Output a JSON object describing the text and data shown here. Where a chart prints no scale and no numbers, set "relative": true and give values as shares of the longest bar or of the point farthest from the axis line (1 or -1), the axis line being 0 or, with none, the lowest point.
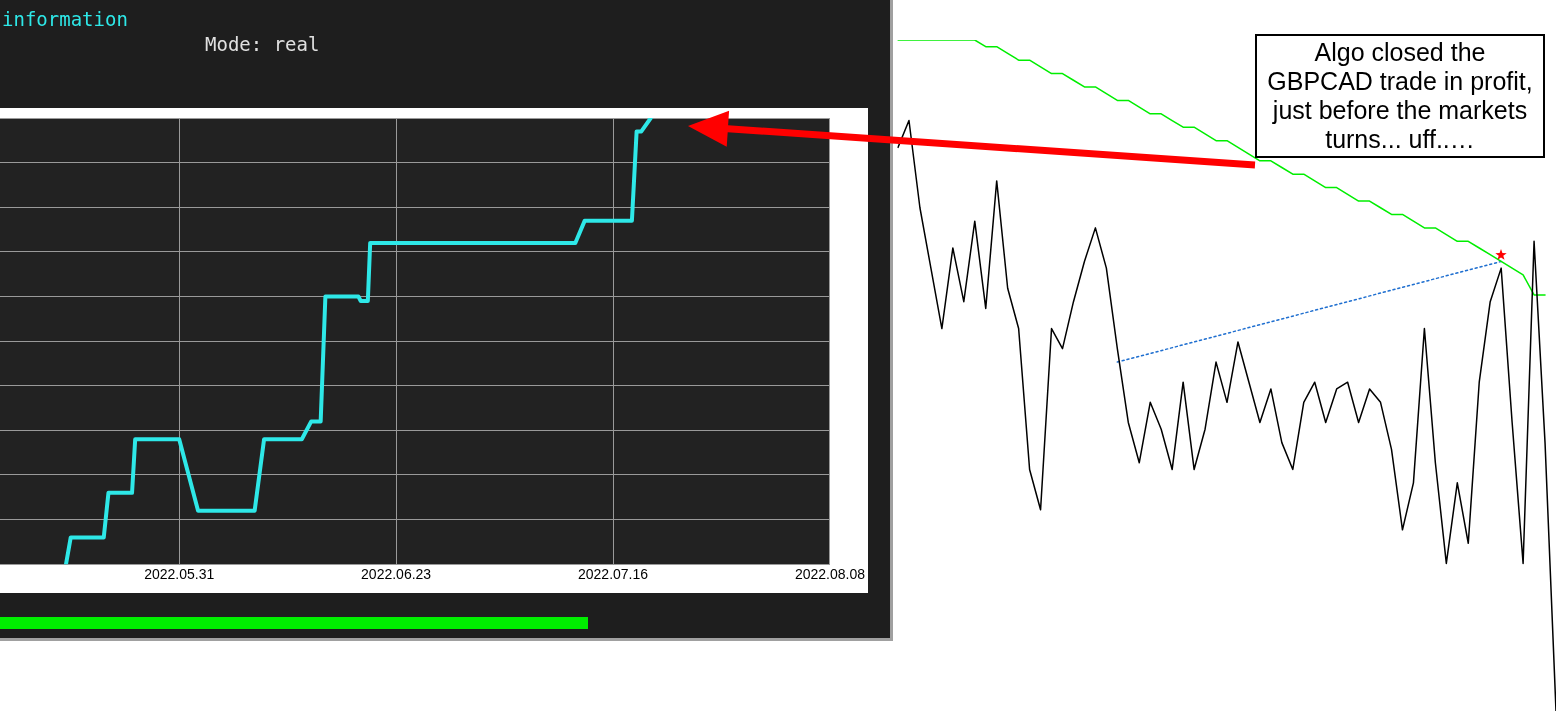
{
  "chart_data": [
    {
      "type": "line",
      "title": "information",
      "subtitle": "Mode: real",
      "relative": true,
      "marker": "none",
      "grid": true,
      "tick_labels": "x",
      "color": "#2ee8e8",
      "x": [
        "2022-05-19",
        "2022-05-19T12:00",
        "2022-05-23",
        "2022-05-23T12:00",
        "2022-05-26",
        "2022-05-26T08:00",
        "2022-05-31",
        "2022-06-02",
        "2022-06-08",
        "2022-06-09",
        "2022-06-13",
        "2022-06-14",
        "2022-06-15",
        "2022-06-15T12:00",
        "2022-06-19",
        "2022-06-19T06:00",
        "2022-06-20",
        "2022-06-20T06:00",
        "2022-06-23",
        "2022-07-12",
        "2022-07-13",
        "2022-07-18",
        "2022-07-18T12:00",
        "2022-07-19",
        "2022-07-20"
      ],
      "values": [
        0,
        0.06,
        0.06,
        0.16,
        0.16,
        0.28,
        0.28,
        0.12,
        0.12,
        0.28,
        0.28,
        0.32,
        0.32,
        0.6,
        0.6,
        0.59,
        0.59,
        0.72,
        0.72,
        0.72,
        0.77,
        0.77,
        0.97,
        0.97,
        1
      ],
      "xlim": [
        "2022-05-12",
        "2022-08-08"
      ],
      "xticks": [
        {
          "value": "2022-05-31",
          "label": "2022.05.31"
        },
        {
          "value": "2022-06-23",
          "label": "2022.06.23"
        },
        {
          "value": "2022-07-16",
          "label": "2022.07.16"
        },
        {
          "value": "2022-08-08",
          "label": "2022.08.08"
        }
      ]
    },
    {
      "type": "line",
      "relative": true,
      "marker": "none",
      "tick_labels": false,
      "categories": [
        null,
        null,
        null,
        null,
        null,
        null,
        null,
        null,
        null,
        null,
        null,
        null,
        null,
        null,
        null,
        null,
        null,
        null,
        null,
        null,
        null,
        null,
        null,
        null,
        null,
        null,
        null,
        null,
        null,
        null,
        null,
        null,
        null,
        null,
        null,
        null,
        null,
        null,
        null,
        null,
        null,
        null,
        null,
        null,
        null,
        null,
        null,
        null,
        null,
        null,
        null,
        null,
        null,
        null,
        null,
        null,
        null,
        null,
        null,
        null,
        null
      ],
      "series": [
        {
          "color": "#000000",
          "values": [
            0.84,
            0.88,
            0.75,
            0.66,
            0.57,
            0.69,
            0.61,
            0.73,
            0.6,
            0.79,
            0.63,
            0.57,
            0.36,
            0.3,
            0.57,
            0.54,
            0.61,
            0.67,
            0.72,
            0.66,
            0.54,
            0.43,
            0.37,
            0.46,
            0.42,
            0.36,
            0.49,
            0.36,
            0.42,
            0.52,
            0.46,
            0.55,
            0.49,
            0.43,
            0.48,
            0.4,
            0.36,
            0.46,
            0.49,
            0.43,
            0.48,
            0.49,
            0.43,
            0.48,
            0.46,
            0.39,
            0.27,
            0.34,
            0.57,
            0.37,
            0.22,
            0.34,
            0.25,
            0.49,
            0.61,
            0.66,
            0.43,
            0.22,
            0.7,
            0.4,
            0
          ]
        },
        {
          "color": "#00ee00",
          "values": [
            1,
            1,
            1,
            1,
            1,
            1,
            1,
            1,
            0.99,
            0.99,
            0.98,
            0.97,
            0.97,
            0.96,
            0.95,
            0.95,
            0.94,
            0.93,
            0.93,
            0.92,
            0.91,
            0.91,
            0.9,
            0.89,
            0.89,
            0.88,
            0.87,
            0.87,
            0.86,
            0.85,
            0.85,
            0.84,
            0.83,
            0.82,
            0.82,
            0.81,
            0.8,
            0.8,
            0.79,
            0.78,
            0.78,
            0.77,
            0.76,
            0.76,
            0.75,
            0.74,
            0.74,
            0.73,
            0.72,
            0.72,
            0.71,
            0.7,
            0.7,
            0.69,
            0.68,
            0.67,
            0.66,
            0.65,
            0.62,
            0.62,
            null
          ]
        },
        {
          "color": "#1f6fd0",
          "line_style": "dotted",
          "values": [
            null,
            null,
            null,
            null,
            null,
            null,
            null,
            null,
            null,
            null,
            null,
            null,
            null,
            null,
            null,
            null,
            null,
            null,
            null,
            null,
            0.52,
            null,
            null,
            null,
            null,
            null,
            null,
            null,
            null,
            null,
            null,
            null,
            null,
            null,
            null,
            null,
            null,
            null,
            null,
            null,
            null,
            null,
            null,
            null,
            null,
            null,
            null,
            null,
            null,
            null,
            null,
            null,
            null,
            null,
            null,
            0.67,
            null,
            null,
            null,
            null,
            null
          ]
        }
      ],
      "annotations": [
        "Algo closed the GBPCAD trade in profit, just before the markets  turns...  uff..…"
      ]
    }
  ]
}
